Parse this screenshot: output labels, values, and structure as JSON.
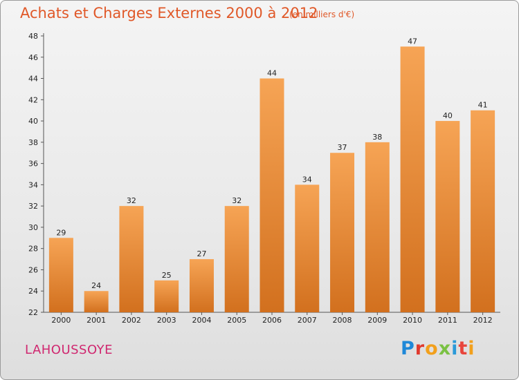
{
  "chart_data": {
    "type": "bar",
    "title": "Achats et Charges Externes 2000 à 2012",
    "subtitle": "(en milliers d'€)",
    "categories": [
      "2000",
      "2001",
      "2002",
      "2003",
      "2004",
      "2005",
      "2006",
      "2007",
      "2008",
      "2009",
      "2010",
      "2011",
      "2012"
    ],
    "values": [
      29,
      24,
      32,
      25,
      27,
      32,
      44,
      34,
      37,
      38,
      47,
      40,
      41
    ],
    "ylim": [
      22,
      48
    ],
    "yticks": [
      22,
      24,
      26,
      28,
      30,
      32,
      34,
      36,
      38,
      40,
      42,
      44,
      46,
      48
    ],
    "grid": false,
    "legend": "none",
    "bar_color": "#f0903a",
    "title_color": "#e05828"
  },
  "footer": {
    "commune": "LAHOUSSOYE",
    "commune_color": "#d02870",
    "logo_letters": [
      {
        "ch": "P",
        "color": "#1e88d8"
      },
      {
        "ch": "r",
        "color": "#e03a2e"
      },
      {
        "ch": "o",
        "color": "#f2a01c"
      },
      {
        "ch": "x",
        "color": "#7ac143"
      },
      {
        "ch": "i",
        "color": "#2a9ad8"
      },
      {
        "ch": "t",
        "color": "#e8453c"
      },
      {
        "ch": "i",
        "color": "#f2a01c"
      }
    ]
  }
}
